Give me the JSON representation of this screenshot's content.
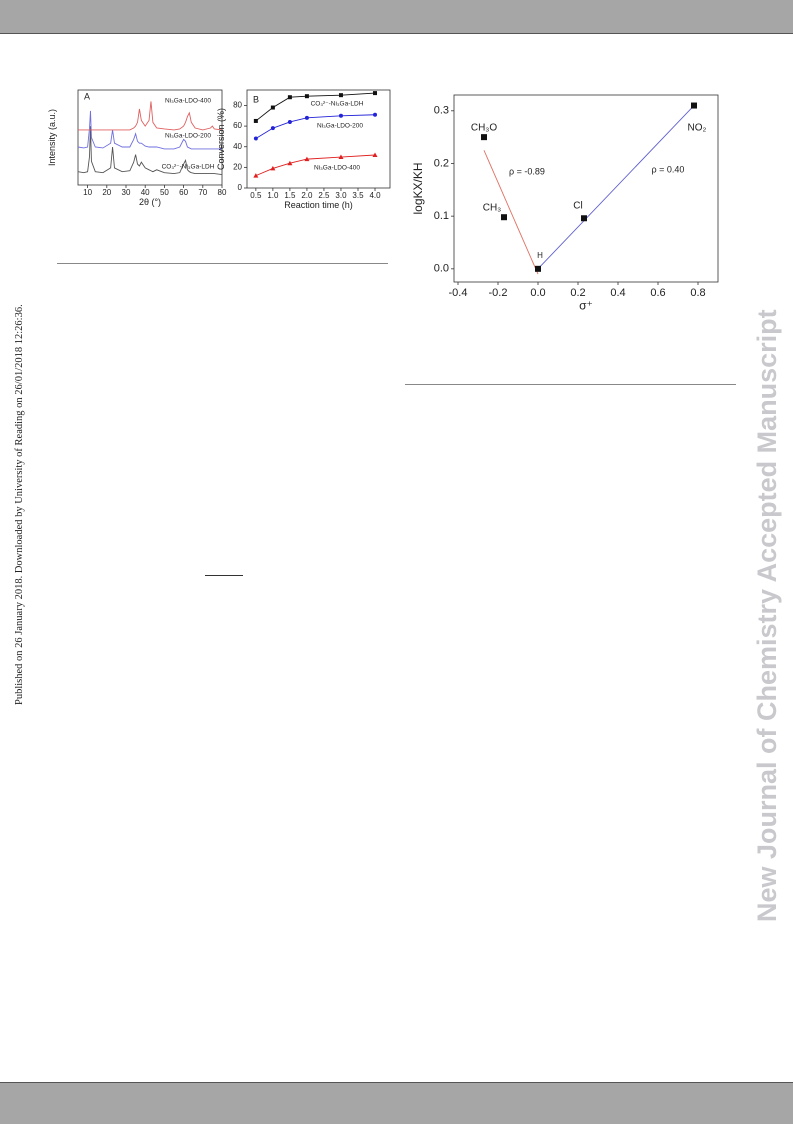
{
  "side_note": "Published on 26 January 2018. Downloaded by University of Reading on 26/01/2018 12:26:36.",
  "watermark": "New Journal of Chemistry Accepted Manuscript",
  "chart_data": [
    {
      "type": "line",
      "panel": "A",
      "x_label": "2θ (°)",
      "y_label": "Intensity (a.u.)",
      "xlim": [
        5,
        80
      ],
      "ylim": [
        0,
        100
      ],
      "xticks": [
        10,
        20,
        30,
        40,
        50,
        60,
        70,
        80
      ],
      "x": [
        5,
        8,
        10,
        11,
        11.5,
        12,
        14,
        18,
        22,
        23,
        24,
        28,
        32,
        34,
        35,
        36,
        37,
        38,
        40,
        42,
        43,
        44,
        46,
        50,
        55,
        58,
        60,
        61,
        62,
        63,
        64,
        66,
        70,
        74,
        75,
        76,
        80
      ],
      "series": [
        {
          "name": "CO₃²⁻-Ni₃Ga-LDH",
          "color": "#555555",
          "values": [
            14,
            13,
            14,
            30,
            62,
            25,
            14,
            13,
            18,
            40,
            18,
            14,
            15,
            24,
            32,
            22,
            20,
            24,
            18,
            16,
            15,
            14,
            16,
            13,
            12,
            13,
            22,
            26,
            16,
            14,
            13,
            12,
            12,
            12,
            12,
            12,
            11
          ]
        },
        {
          "name": "Ni₃Ga-LDO-200",
          "color": "#6f6fe0",
          "values": [
            40,
            39,
            40,
            60,
            78,
            50,
            40,
            39,
            44,
            58,
            44,
            40,
            40,
            48,
            54,
            46,
            44,
            44,
            41,
            40,
            40,
            40,
            40,
            38,
            38,
            40,
            48,
            46,
            40,
            39,
            38,
            38,
            38,
            38,
            38,
            38,
            38
          ]
        },
        {
          "name": "Ni₃Ga-LDO-400",
          "color": "#e06060",
          "values": [
            58,
            58,
            58,
            58,
            58,
            58,
            58,
            58,
            58,
            58,
            58,
            58,
            58,
            60,
            62,
            66,
            80,
            68,
            62,
            68,
            88,
            66,
            60,
            59,
            58,
            59,
            62,
            66,
            72,
            76,
            66,
            60,
            58,
            60,
            62,
            59,
            58
          ]
        }
      ]
    },
    {
      "type": "line",
      "panel": "B",
      "x_label": "Reaction time (h)",
      "y_label": "Conversion (%)",
      "xlim": [
        0.24,
        4.44
      ],
      "ylim": [
        0,
        95
      ],
      "xticks": [
        0.5,
        {
          "value": 1,
          "label": "1.0"
        },
        1.5,
        {
          "value": 2,
          "label": "2.0"
        },
        2.5,
        {
          "value": 3,
          "label": "3.0"
        },
        3.5,
        {
          "value": 4,
          "label": "4.0"
        }
      ],
      "yticks": [
        0,
        20,
        40,
        60,
        80
      ],
      "x": [
        0.5,
        1,
        1.5,
        2,
        3,
        4
      ],
      "series": [
        {
          "name": "CO₃²⁻-Ni₃Ga-LDH",
          "color": "#111111",
          "marker": "square",
          "values": [
            65,
            78,
            88,
            89,
            90,
            92
          ]
        },
        {
          "name": "Ni₃Ga-LDO-200",
          "color": "#2323d8",
          "marker": "circle",
          "values": [
            48,
            58,
            64,
            68,
            70,
            71
          ]
        },
        {
          "name": "Ni₃Ga-LDO-400",
          "color": "#e02020",
          "marker": "triangle",
          "values": [
            12,
            19,
            24,
            28,
            30,
            32
          ]
        }
      ]
    },
    {
      "type": "scatter",
      "x_label": "σ⁺",
      "y_label": "logKX/KH",
      "xlim": [
        -0.42,
        0.9
      ],
      "ylim": [
        -0.025,
        0.33
      ],
      "xticks": [
        -0.4,
        -0.2,
        {
          "value": 0,
          "label": "0.0"
        },
        0.2,
        0.4,
        0.6,
        0.8
      ],
      "yticks": [
        {
          "value": 0,
          "label": "0.0"
        },
        0.1,
        0.2,
        0.3
      ],
      "color": "#111111",
      "x": [
        -0.27,
        -0.17,
        0,
        0.23,
        0.78
      ],
      "values": [
        0.25,
        0.098,
        0,
        0.096,
        0.31
      ],
      "point_labels": [
        "CH₃O",
        "CH₃",
        "H",
        "Cl",
        "NO₂"
      ],
      "fit_lines": [
        {
          "color": "#e07060",
          "x": [
            -0.27,
            0
          ],
          "values": [
            0.225,
            -0.01
          ]
        },
        {
          "color": "#6060d0",
          "x": [
            0,
            0.78
          ],
          "values": [
            0,
            0.31
          ]
        }
      ],
      "annotations": [
        "ρ = -0.89",
        "ρ = 0.40"
      ]
    }
  ]
}
